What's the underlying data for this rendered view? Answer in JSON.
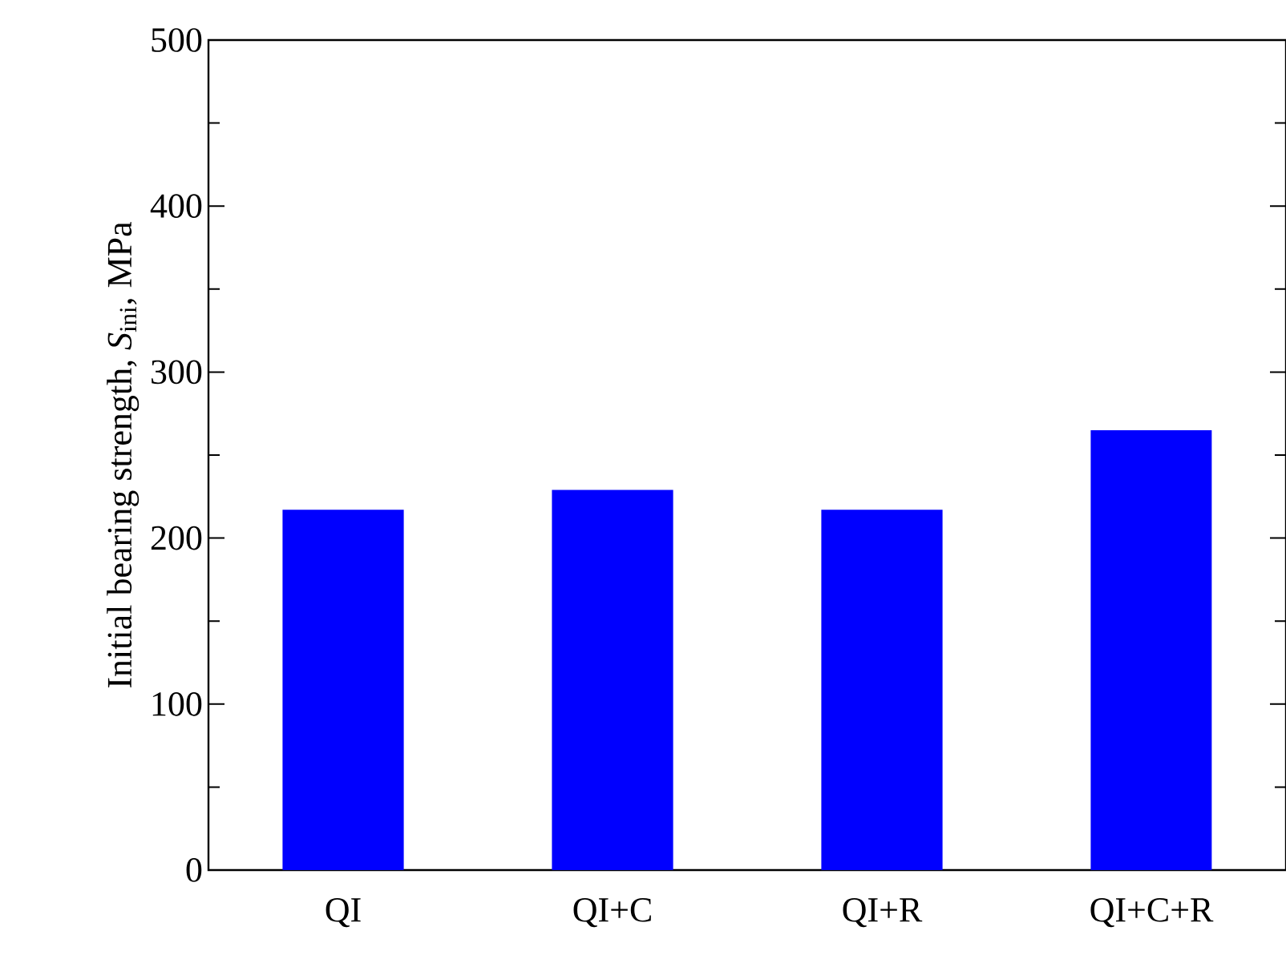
{
  "chart_data": {
    "type": "bar",
    "ylabel": "Initial bearing strength, *S*$_{ini}$, MPa",
    "categories": [
      "QI",
      "QI+C",
      "QI+R",
      "QI+C+R"
    ],
    "values": [
      217,
      229,
      217,
      265
    ],
    "color": "#0000ff",
    "ylim": [
      0,
      500
    ],
    "yticks": [
      0,
      100,
      200,
      300,
      400,
      500
    ],
    "grid": false
  }
}
